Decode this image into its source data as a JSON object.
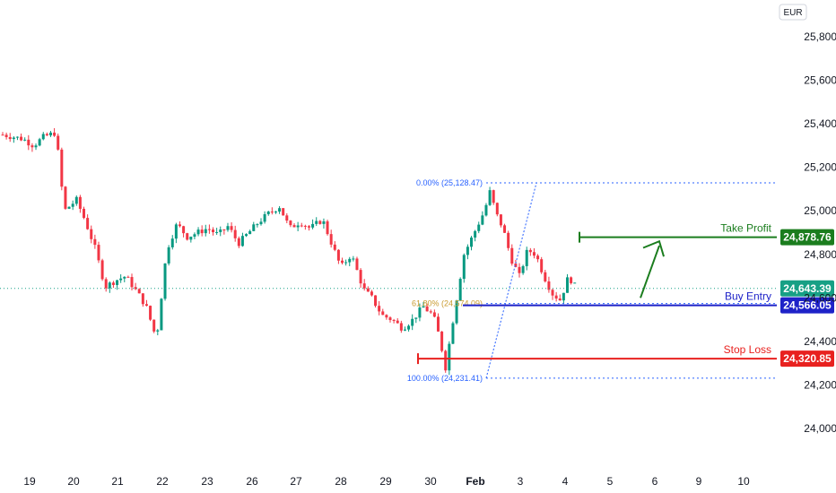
{
  "currency": "EUR",
  "chart_data": {
    "type": "candlestick",
    "title": "",
    "xlabel": "",
    "ylabel": "",
    "ylim": [
      23850,
      25970
    ],
    "y_ticks": [
      24000,
      24200,
      24400,
      24600,
      24800,
      25000,
      25200,
      25400,
      25600,
      25800
    ],
    "y_tick_labels": [
      "24,000.00",
      "24,200.00",
      "24,400.00",
      "24,600.00",
      "24,800.00",
      "25,000.00",
      "25,200.00",
      "25,400.00",
      "25,600.00",
      "25,800.00"
    ],
    "x_ticks": [
      {
        "label": "19",
        "bold": false
      },
      {
        "label": "20",
        "bold": false
      },
      {
        "label": "21",
        "bold": false
      },
      {
        "label": "22",
        "bold": false
      },
      {
        "label": "23",
        "bold": false
      },
      {
        "label": "26",
        "bold": false
      },
      {
        "label": "27",
        "bold": false
      },
      {
        "label": "28",
        "bold": false
      },
      {
        "label": "29",
        "bold": false
      },
      {
        "label": "30",
        "bold": false
      },
      {
        "label": "Feb",
        "bold": true
      },
      {
        "label": "3",
        "bold": false
      },
      {
        "label": "4",
        "bold": false
      },
      {
        "label": "5",
        "bold": false
      },
      {
        "label": "6",
        "bold": false
      },
      {
        "label": "9",
        "bold": false
      },
      {
        "label": "10",
        "bold": false
      }
    ],
    "price_path": [
      {
        "x": 0,
        "y": 25350
      },
      {
        "x": 1,
        "y": 25330
      },
      {
        "x": 1.5,
        "y": 25300
      },
      {
        "x": 2,
        "y": 25340
      },
      {
        "x": 2.6,
        "y": 25360
      },
      {
        "x": 3,
        "y": 25000
      },
      {
        "x": 3.6,
        "y": 25050
      },
      {
        "x": 4,
        "y": 24960
      },
      {
        "x": 4.5,
        "y": 24830
      },
      {
        "x": 5,
        "y": 24650
      },
      {
        "x": 5.5,
        "y": 24680
      },
      {
        "x": 6,
        "y": 24700
      },
      {
        "x": 6.6,
        "y": 24620
      },
      {
        "x": 7,
        "y": 24560
      },
      {
        "x": 7.5,
        "y": 24410
      },
      {
        "x": 8,
        "y": 24820
      },
      {
        "x": 8.5,
        "y": 24940
      },
      {
        "x": 9,
        "y": 24880
      },
      {
        "x": 9.5,
        "y": 24900
      },
      {
        "x": 10,
        "y": 24920
      },
      {
        "x": 10.5,
        "y": 24890
      },
      {
        "x": 11,
        "y": 24930
      },
      {
        "x": 11.5,
        "y": 24850
      },
      {
        "x": 12,
        "y": 24900
      },
      {
        "x": 12.5,
        "y": 24950
      },
      {
        "x": 13,
        "y": 24990
      },
      {
        "x": 13.5,
        "y": 25020
      },
      {
        "x": 14,
        "y": 24920
      },
      {
        "x": 14.5,
        "y": 24950
      },
      {
        "x": 15,
        "y": 24920
      },
      {
        "x": 15.6,
        "y": 24960
      },
      {
        "x": 16,
        "y": 24860
      },
      {
        "x": 16.5,
        "y": 24740
      },
      {
        "x": 17,
        "y": 24800
      },
      {
        "x": 17.6,
        "y": 24640
      },
      {
        "x": 18,
        "y": 24600
      },
      {
        "x": 18.5,
        "y": 24520
      },
      {
        "x": 19,
        "y": 24500
      },
      {
        "x": 19.5,
        "y": 24460
      },
      {
        "x": 20,
        "y": 24500
      },
      {
        "x": 20.5,
        "y": 24560
      },
      {
        "x": 21,
        "y": 24520
      },
      {
        "x": 21.3,
        "y": 24420
      },
      {
        "x": 21.6,
        "y": 24280
      },
      {
        "x": 22,
        "y": 24520
      },
      {
        "x": 22.5,
        "y": 24800
      },
      {
        "x": 23,
        "y": 24900
      },
      {
        "x": 23.5,
        "y": 25000
      },
      {
        "x": 23.8,
        "y": 25100
      },
      {
        "x": 24,
        "y": 25000
      },
      {
        "x": 24.4,
        "y": 24920
      },
      {
        "x": 24.8,
        "y": 24780
      },
      {
        "x": 25.2,
        "y": 24700
      },
      {
        "x": 25.6,
        "y": 24820
      },
      {
        "x": 26,
        "y": 24800
      },
      {
        "x": 26.4,
        "y": 24700
      },
      {
        "x": 26.8,
        "y": 24620
      },
      {
        "x": 27.2,
        "y": 24590
      },
      {
        "x": 27.6,
        "y": 24700
      },
      {
        "x": 28,
        "y": 24640
      }
    ],
    "levels": [
      {
        "name": "Take Profit",
        "value": 24878.76,
        "tag": "24,878.76",
        "color": "#1b7d1e"
      },
      {
        "name": "Buy Entry",
        "value": 24566.05,
        "tag": "24,566.05",
        "color": "#1e22c8"
      },
      {
        "name": "Stop Loss",
        "value": 24320.85,
        "tag": "24,320.85",
        "color": "#e8211f"
      }
    ],
    "current_price": {
      "value": 24643.39,
      "tag": "24,643.39",
      "color": "#17a085"
    },
    "fibonacci": [
      {
        "ratio_label": "0.00% (25,128.47)",
        "value": 25128.47
      },
      {
        "ratio_label": "61.80% (24,574.09)",
        "value": 24574.09
      },
      {
        "ratio_label": "100.00% (24,231.41)",
        "value": 24231.41
      }
    ]
  }
}
